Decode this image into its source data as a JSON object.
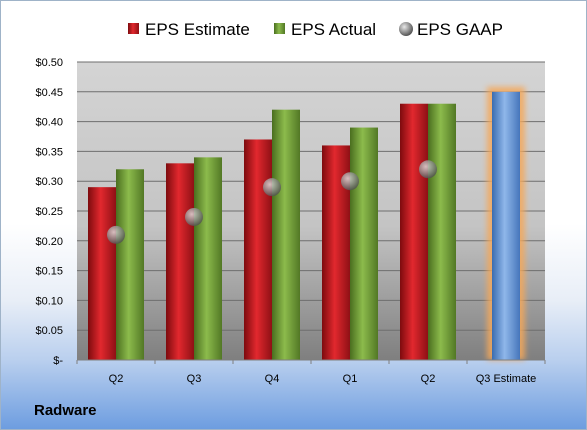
{
  "company": "Radware",
  "colors": {
    "estimate": "#c0161c",
    "actual": "#6f9a34",
    "gaap": "#9aa0a8",
    "projection": "#5d8fd0",
    "highlight": "#f5a85a"
  },
  "chart_data": {
    "type": "bar",
    "categories": [
      "Q2",
      "Q3",
      "Q4",
      "Q1",
      "Q2",
      "Q3 Estimate"
    ],
    "series": [
      {
        "name": "EPS Estimate",
        "values": [
          0.29,
          0.33,
          0.37,
          0.36,
          0.43,
          null
        ]
      },
      {
        "name": "EPS Actual",
        "values": [
          0.32,
          0.34,
          0.42,
          0.39,
          0.43,
          0.45
        ]
      },
      {
        "name": "EPS GAAP",
        "values": [
          0.21,
          0.24,
          0.29,
          0.3,
          0.32,
          null
        ]
      }
    ],
    "y_ticks": [
      "$-",
      "$0.05",
      "$0.10",
      "$0.15",
      "$0.20",
      "$0.25",
      "$0.30",
      "$0.35",
      "$0.40",
      "$0.45",
      "$0.50"
    ],
    "ylim": [
      0,
      0.5
    ],
    "grid": true,
    "legend_position": "top"
  }
}
